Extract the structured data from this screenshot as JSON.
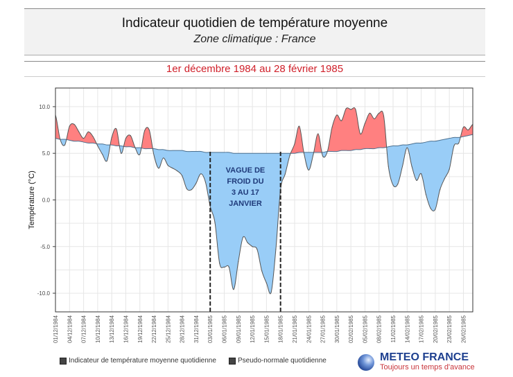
{
  "header": {
    "title": "Indicateur quotidien de température moyenne",
    "subtitle": "Zone climatique : France"
  },
  "period": "1er décembre 1984 au 28 février 1985",
  "legend": {
    "series1": "Indicateur de température moyenne quotidienne",
    "series2": "Pseudo-normale quotidienne"
  },
  "logo": {
    "name": "METEO FRANCE",
    "tagline": "Toujours un temps d'avance"
  },
  "chart_data": {
    "type": "area",
    "ylabel": "Température (°C)",
    "ylim": [
      -12,
      12
    ],
    "yticks": [
      "10.0",
      "5.0",
      "0.0",
      "-5.0",
      "-10.0"
    ],
    "ytick_values": [
      10,
      5,
      0,
      -5,
      -10
    ],
    "grid": true,
    "x_start": "01/12/1984",
    "x_end": "28/02/1985",
    "xtick_labels": [
      "01/12/1984",
      "04/12/1984",
      "07/12/1984",
      "10/12/1984",
      "13/12/1984",
      "16/12/1984",
      "19/12/1984",
      "22/12/1984",
      "25/12/1984",
      "28/12/1984",
      "31/12/1984",
      "03/01/1985",
      "06/01/1985",
      "09/01/1985",
      "12/01/1985",
      "15/01/1985",
      "18/01/1985",
      "21/01/1985",
      "24/01/1985",
      "27/01/1985",
      "30/01/1985",
      "02/02/1985",
      "05/02/1985",
      "08/02/1985",
      "11/02/1985",
      "14/02/1985",
      "17/02/1985",
      "20/02/1985",
      "23/02/1985",
      "26/02/1985"
    ],
    "series": [
      {
        "name": "Indicateur de température moyenne quotidienne",
        "values": [
          9.1,
          6.5,
          5.9,
          7.9,
          8.1,
          7.3,
          6.6,
          7.3,
          6.8,
          5.8,
          4.9,
          4.2,
          6.7,
          7.6,
          5.0,
          6.6,
          6.9,
          5.6,
          4.9,
          7.4,
          7.5,
          4.8,
          3.4,
          4.5,
          3.7,
          3.4,
          3.1,
          2.6,
          1.2,
          1.1,
          1.8,
          2.8,
          1.9,
          -0.7,
          -2.4,
          -6.8,
          -7.2,
          -7.2,
          -9.6,
          -6.6,
          -4.0,
          -4.6,
          -5.0,
          -5.3,
          -7.6,
          -8.9,
          -9.9,
          -5.3,
          1.1,
          2.8,
          4.8,
          6.0,
          7.9,
          5.0,
          3.2,
          4.9,
          7.1,
          4.7,
          5.2,
          7.8,
          9.1,
          8.5,
          9.8,
          9.7,
          9.7,
          7.1,
          8.2,
          9.3,
          8.7,
          9.3,
          9.0,
          3.6,
          1.6,
          1.7,
          3.6,
          5.6,
          3.6,
          2.1,
          2.8,
          0.6,
          -0.9,
          -1.0,
          1.1,
          2.3,
          3.3,
          5.8,
          6.1,
          7.8,
          7.5,
          8.1
        ]
      },
      {
        "name": "Pseudo-normale quotidienne",
        "values": [
          6.6,
          6.5,
          6.5,
          6.4,
          6.3,
          6.3,
          6.2,
          6.1,
          6.1,
          6.0,
          6.0,
          5.9,
          5.9,
          5.8,
          5.8,
          5.7,
          5.7,
          5.6,
          5.6,
          5.5,
          5.5,
          5.5,
          5.4,
          5.4,
          5.3,
          5.3,
          5.3,
          5.3,
          5.2,
          5.2,
          5.2,
          5.2,
          5.1,
          5.1,
          5.1,
          5.1,
          5.1,
          5.1,
          5.0,
          5.0,
          5.0,
          5.0,
          5.0,
          5.0,
          5.0,
          5.0,
          5.0,
          5.0,
          5.0,
          5.0,
          5.0,
          5.0,
          5.1,
          5.1,
          5.1,
          5.1,
          5.1,
          5.1,
          5.2,
          5.2,
          5.2,
          5.3,
          5.3,
          5.3,
          5.4,
          5.4,
          5.5,
          5.5,
          5.5,
          5.6,
          5.6,
          5.7,
          5.8,
          5.8,
          5.9,
          5.9,
          6.0,
          6.1,
          6.1,
          6.2,
          6.3,
          6.3,
          6.4,
          6.5,
          6.6,
          6.7,
          6.7,
          6.8,
          6.9,
          7.0
        ]
      }
    ],
    "colors": {
      "above_normal": "#ff8080",
      "below_normal": "#99cdf7",
      "line": "#555555",
      "annotation": "#1f3a7a"
    },
    "annotation": {
      "lines": [
        "VAGUE DE",
        "FROID DU",
        "3 AU 17",
        "JANVIER"
      ],
      "start": "03/01/1985",
      "end": "18/01/1985",
      "style": "dashed vertical lines"
    }
  }
}
